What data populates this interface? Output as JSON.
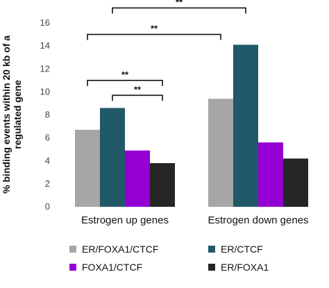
{
  "chart_data": {
    "type": "bar",
    "title": "",
    "xlabel": "",
    "ylabel": "% binding events within 20 kb of a regulated gene",
    "ylabel_lines": [
      "% binding events within 20 kb of a",
      "regulated gene"
    ],
    "ylim": [
      0,
      16
    ],
    "yticks": [
      0,
      2,
      4,
      6,
      8,
      10,
      12,
      14,
      16
    ],
    "grid": false,
    "legend_position": "bottom",
    "categories": [
      "Estrogen up genes",
      "Estrogen down genes"
    ],
    "series": [
      {
        "name": "ER/FOXA1/CTCF",
        "color": "#a6a6a6",
        "values": [
          6.7,
          9.4
        ]
      },
      {
        "name": "ER/CTCF",
        "color": "#215968",
        "values": [
          8.6,
          14.1
        ]
      },
      {
        "name": "FOXA1/CTCF",
        "color": "#9400d3",
        "values": [
          4.9,
          5.6
        ]
      },
      {
        "name": "ER/FOXA1",
        "color": "#262626",
        "values": [
          3.8,
          4.2
        ]
      }
    ],
    "significance": [
      {
        "label": "**",
        "from": {
          "category": 0,
          "series": 1
        },
        "to": {
          "category": 1,
          "series": 1
        },
        "level": 17.3
      },
      {
        "label": "**",
        "from": {
          "category": 0,
          "series": 0
        },
        "to": {
          "category": 1,
          "series": 0
        },
        "level": 15.0
      },
      {
        "label": "**",
        "from": {
          "category": 0,
          "series": 0
        },
        "to": {
          "category": 0,
          "series": 3
        },
        "level": 11.0
      },
      {
        "label": "**",
        "from": {
          "category": 0,
          "series": 1
        },
        "to": {
          "category": 0,
          "series": 3
        },
        "level": 9.7
      }
    ]
  }
}
